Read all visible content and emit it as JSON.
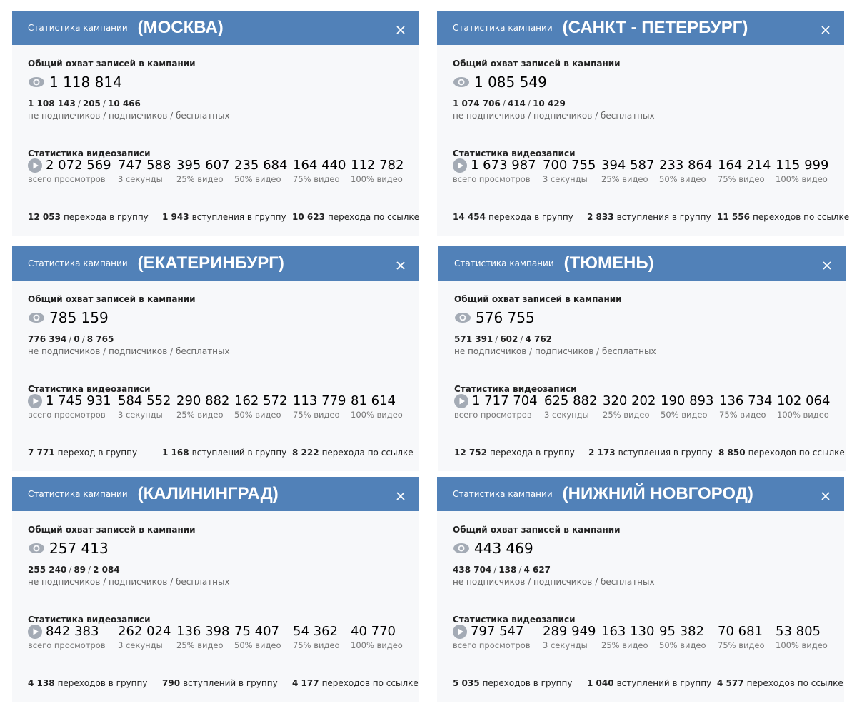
{
  "panels": [
    {
      "header": "Статистика кампании",
      "city": "(МОСКВА)",
      "reach_title": "Общий охват записей в кампании",
      "reach": "1 118 814",
      "breakdown": [
        "1 108 143",
        "205",
        "10 466"
      ],
      "breakdown_separator": "/",
      "breakdown_caption": "не подписчиков / подписчиков / бесплатных",
      "video_title": "Статистика видеозаписи",
      "video": [
        {
          "value": "2 072 569",
          "label": "всего просмотров"
        },
        {
          "value": "747 588",
          "label": "3 секунды"
        },
        {
          "value": "395 607",
          "label": "25% видео"
        },
        {
          "value": "235 684",
          "label": "50% видео"
        },
        {
          "value": "164 440",
          "label": "75% видео"
        },
        {
          "value": "112 782",
          "label": "100% видео"
        }
      ],
      "footer": [
        {
          "value": "12 053",
          "label": "перехода в группу"
        },
        {
          "value": "1 943",
          "label": "вступления в группу"
        },
        {
          "value": "10 623",
          "label": "перехода по ссылке"
        }
      ]
    },
    {
      "header": "Статистика кампании",
      "city": "(САНКТ - ПЕТЕРБУРГ)",
      "reach_title": "Общий охват записей в кампании",
      "reach": "1 085 549",
      "breakdown": [
        "1 074 706",
        "414",
        "10 429"
      ],
      "breakdown_separator": "/",
      "breakdown_caption": "не подписчиков / подписчиков / бесплатных",
      "video_title": "Статистика видеозаписи",
      "video": [
        {
          "value": "1 673 987",
          "label": "всего просмотров"
        },
        {
          "value": "700 755",
          "label": "3 секунды"
        },
        {
          "value": "394 587",
          "label": "25% видео"
        },
        {
          "value": "233 864",
          "label": "50% видео"
        },
        {
          "value": "164 214",
          "label": "75% видео"
        },
        {
          "value": "115 999",
          "label": "100% видео"
        }
      ],
      "footer": [
        {
          "value": "14 454",
          "label": "перехода в группу"
        },
        {
          "value": "2 833",
          "label": "вступления в группу"
        },
        {
          "value": "11 556",
          "label": "переходов по ссылке"
        }
      ]
    },
    {
      "header": "Статистика кампании",
      "city": "(ЕКАТЕРИНБУРГ)",
      "reach_title": "Общий охват записей в кампании",
      "reach": "785 159",
      "breakdown": [
        "776 394",
        "0",
        "8 765"
      ],
      "breakdown_separator": "/",
      "breakdown_caption": "не подписчиков / подписчиков / бесплатных",
      "video_title": "Статистика видеозаписи",
      "video": [
        {
          "value": "1 745 931",
          "label": "всего просмотров"
        },
        {
          "value": "584 552",
          "label": "3 секунды"
        },
        {
          "value": "290 882",
          "label": "25% видео"
        },
        {
          "value": "162 572",
          "label": "50% видео"
        },
        {
          "value": "113 779",
          "label": "75% видео"
        },
        {
          "value": "81 614",
          "label": "100% видео"
        }
      ],
      "footer": [
        {
          "value": "7 771",
          "label": "переход в группу"
        },
        {
          "value": "1 168",
          "label": "вступлений в группу"
        },
        {
          "value": "8 222",
          "label": "перехода по ссылке"
        }
      ]
    },
    {
      "header": "Статистика кампании",
      "city": "(ТЮМЕНЬ)",
      "reach_title": "Общий охват записей в кампании",
      "reach": "576 755",
      "breakdown": [
        "571 391",
        "602",
        "4 762"
      ],
      "breakdown_separator": "/",
      "breakdown_caption": "не подписчиков / подписчиков / бесплатных",
      "video_title": "Статистика видеозаписи",
      "video": [
        {
          "value": "1 717 704",
          "label": "всего просмотров"
        },
        {
          "value": "625 882",
          "label": "3 секунды"
        },
        {
          "value": "320 202",
          "label": "25% видео"
        },
        {
          "value": "190 893",
          "label": "50% видео"
        },
        {
          "value": "136 734",
          "label": "75% видео"
        },
        {
          "value": "102 064",
          "label": "100% видео"
        }
      ],
      "footer": [
        {
          "value": "12 752",
          "label": "перехода в группу"
        },
        {
          "value": "2 173",
          "label": "вступления в группу"
        },
        {
          "value": "8 850",
          "label": "переходов по ссылке"
        }
      ]
    },
    {
      "header": "Статистика кампании",
      "city": "(КАЛИНИНГРАД)",
      "reach_title": "Общий охват записей в кампании",
      "reach": "257 413",
      "breakdown": [
        "255 240",
        "89",
        "2 084"
      ],
      "breakdown_separator": "/",
      "breakdown_caption": "не подписчиков / подписчиков / бесплатных",
      "video_title": "Статистика видеозаписи",
      "video": [
        {
          "value": "842 383",
          "label": "всего просмотров"
        },
        {
          "value": "262 024",
          "label": "3 секунды"
        },
        {
          "value": "136 398",
          "label": "25% видео"
        },
        {
          "value": "75 407",
          "label": "50% видео"
        },
        {
          "value": "54 362",
          "label": "75% видео"
        },
        {
          "value": "40 770",
          "label": "100% видео"
        }
      ],
      "footer": [
        {
          "value": "4 138",
          "label": "переходов в группу"
        },
        {
          "value": "790",
          "label": "вступлений в группу"
        },
        {
          "value": "4 177",
          "label": "переходов по ссылке"
        }
      ]
    },
    {
      "header": "Статистика кампании",
      "city": "(НИЖНИЙ НОВГОРОД)",
      "reach_title": "Общий охват записей в кампании",
      "reach": "443 469",
      "breakdown": [
        "438 704",
        "138",
        "4 627"
      ],
      "breakdown_separator": "/",
      "breakdown_caption": "не подписчиков / подписчиков / бесплатных",
      "video_title": "Статистика видеозаписи",
      "video": [
        {
          "value": "797 547",
          "label": "всего просмотров"
        },
        {
          "value": "289 949",
          "label": "3 секунды"
        },
        {
          "value": "163 130",
          "label": "25% видео"
        },
        {
          "value": "95 382",
          "label": "50% видео"
        },
        {
          "value": "70 681",
          "label": "75% видео"
        },
        {
          "value": "53 805",
          "label": "100% видео"
        }
      ],
      "footer": [
        {
          "value": "5 035",
          "label": "переходов в группу"
        },
        {
          "value": "1 040",
          "label": "вступлений в группу"
        },
        {
          "value": "4 577",
          "label": "переходов по ссылке"
        }
      ]
    }
  ]
}
